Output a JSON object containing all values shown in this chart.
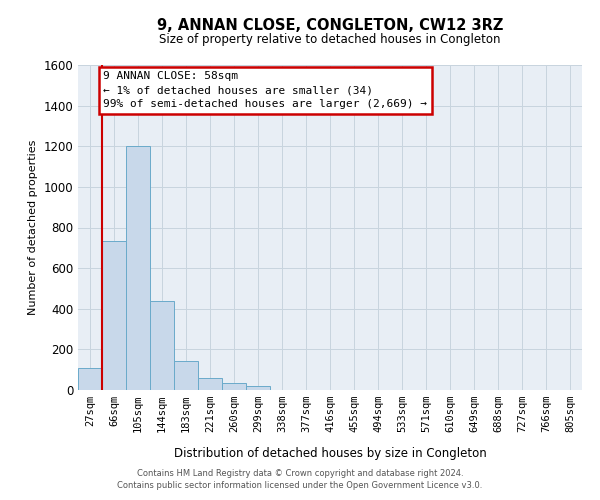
{
  "title": "9, ANNAN CLOSE, CONGLETON, CW12 3RZ",
  "subtitle": "Size of property relative to detached houses in Congleton",
  "xlabel": "Distribution of detached houses by size in Congleton",
  "ylabel": "Number of detached properties",
  "bar_labels": [
    "27sqm",
    "66sqm",
    "105sqm",
    "144sqm",
    "183sqm",
    "221sqm",
    "260sqm",
    "299sqm",
    "338sqm",
    "377sqm",
    "416sqm",
    "455sqm",
    "494sqm",
    "533sqm",
    "571sqm",
    "610sqm",
    "649sqm",
    "688sqm",
    "727sqm",
    "766sqm",
    "805sqm"
  ],
  "bar_values": [
    110,
    735,
    1200,
    440,
    145,
    58,
    35,
    18,
    0,
    0,
    0,
    0,
    0,
    0,
    0,
    0,
    0,
    0,
    0,
    0,
    0
  ],
  "bar_color": "#c8d8ea",
  "bar_edge_color": "#6aaaca",
  "ylim": [
    0,
    1600
  ],
  "yticks": [
    0,
    200,
    400,
    600,
    800,
    1000,
    1200,
    1400,
    1600
  ],
  "vline_x": 0.5,
  "vline_color": "#cc0000",
  "annotation_text": "9 ANNAN CLOSE: 58sqm\n← 1% of detached houses are smaller (34)\n99% of semi-detached houses are larger (2,669) →",
  "annotation_box_facecolor": "#ffffff",
  "annotation_box_edgecolor": "#cc0000",
  "grid_color": "#c8d4de",
  "background_color": "#e8eef5",
  "footer_line1": "Contains HM Land Registry data © Crown copyright and database right 2024.",
  "footer_line2": "Contains public sector information licensed under the Open Government Licence v3.0."
}
